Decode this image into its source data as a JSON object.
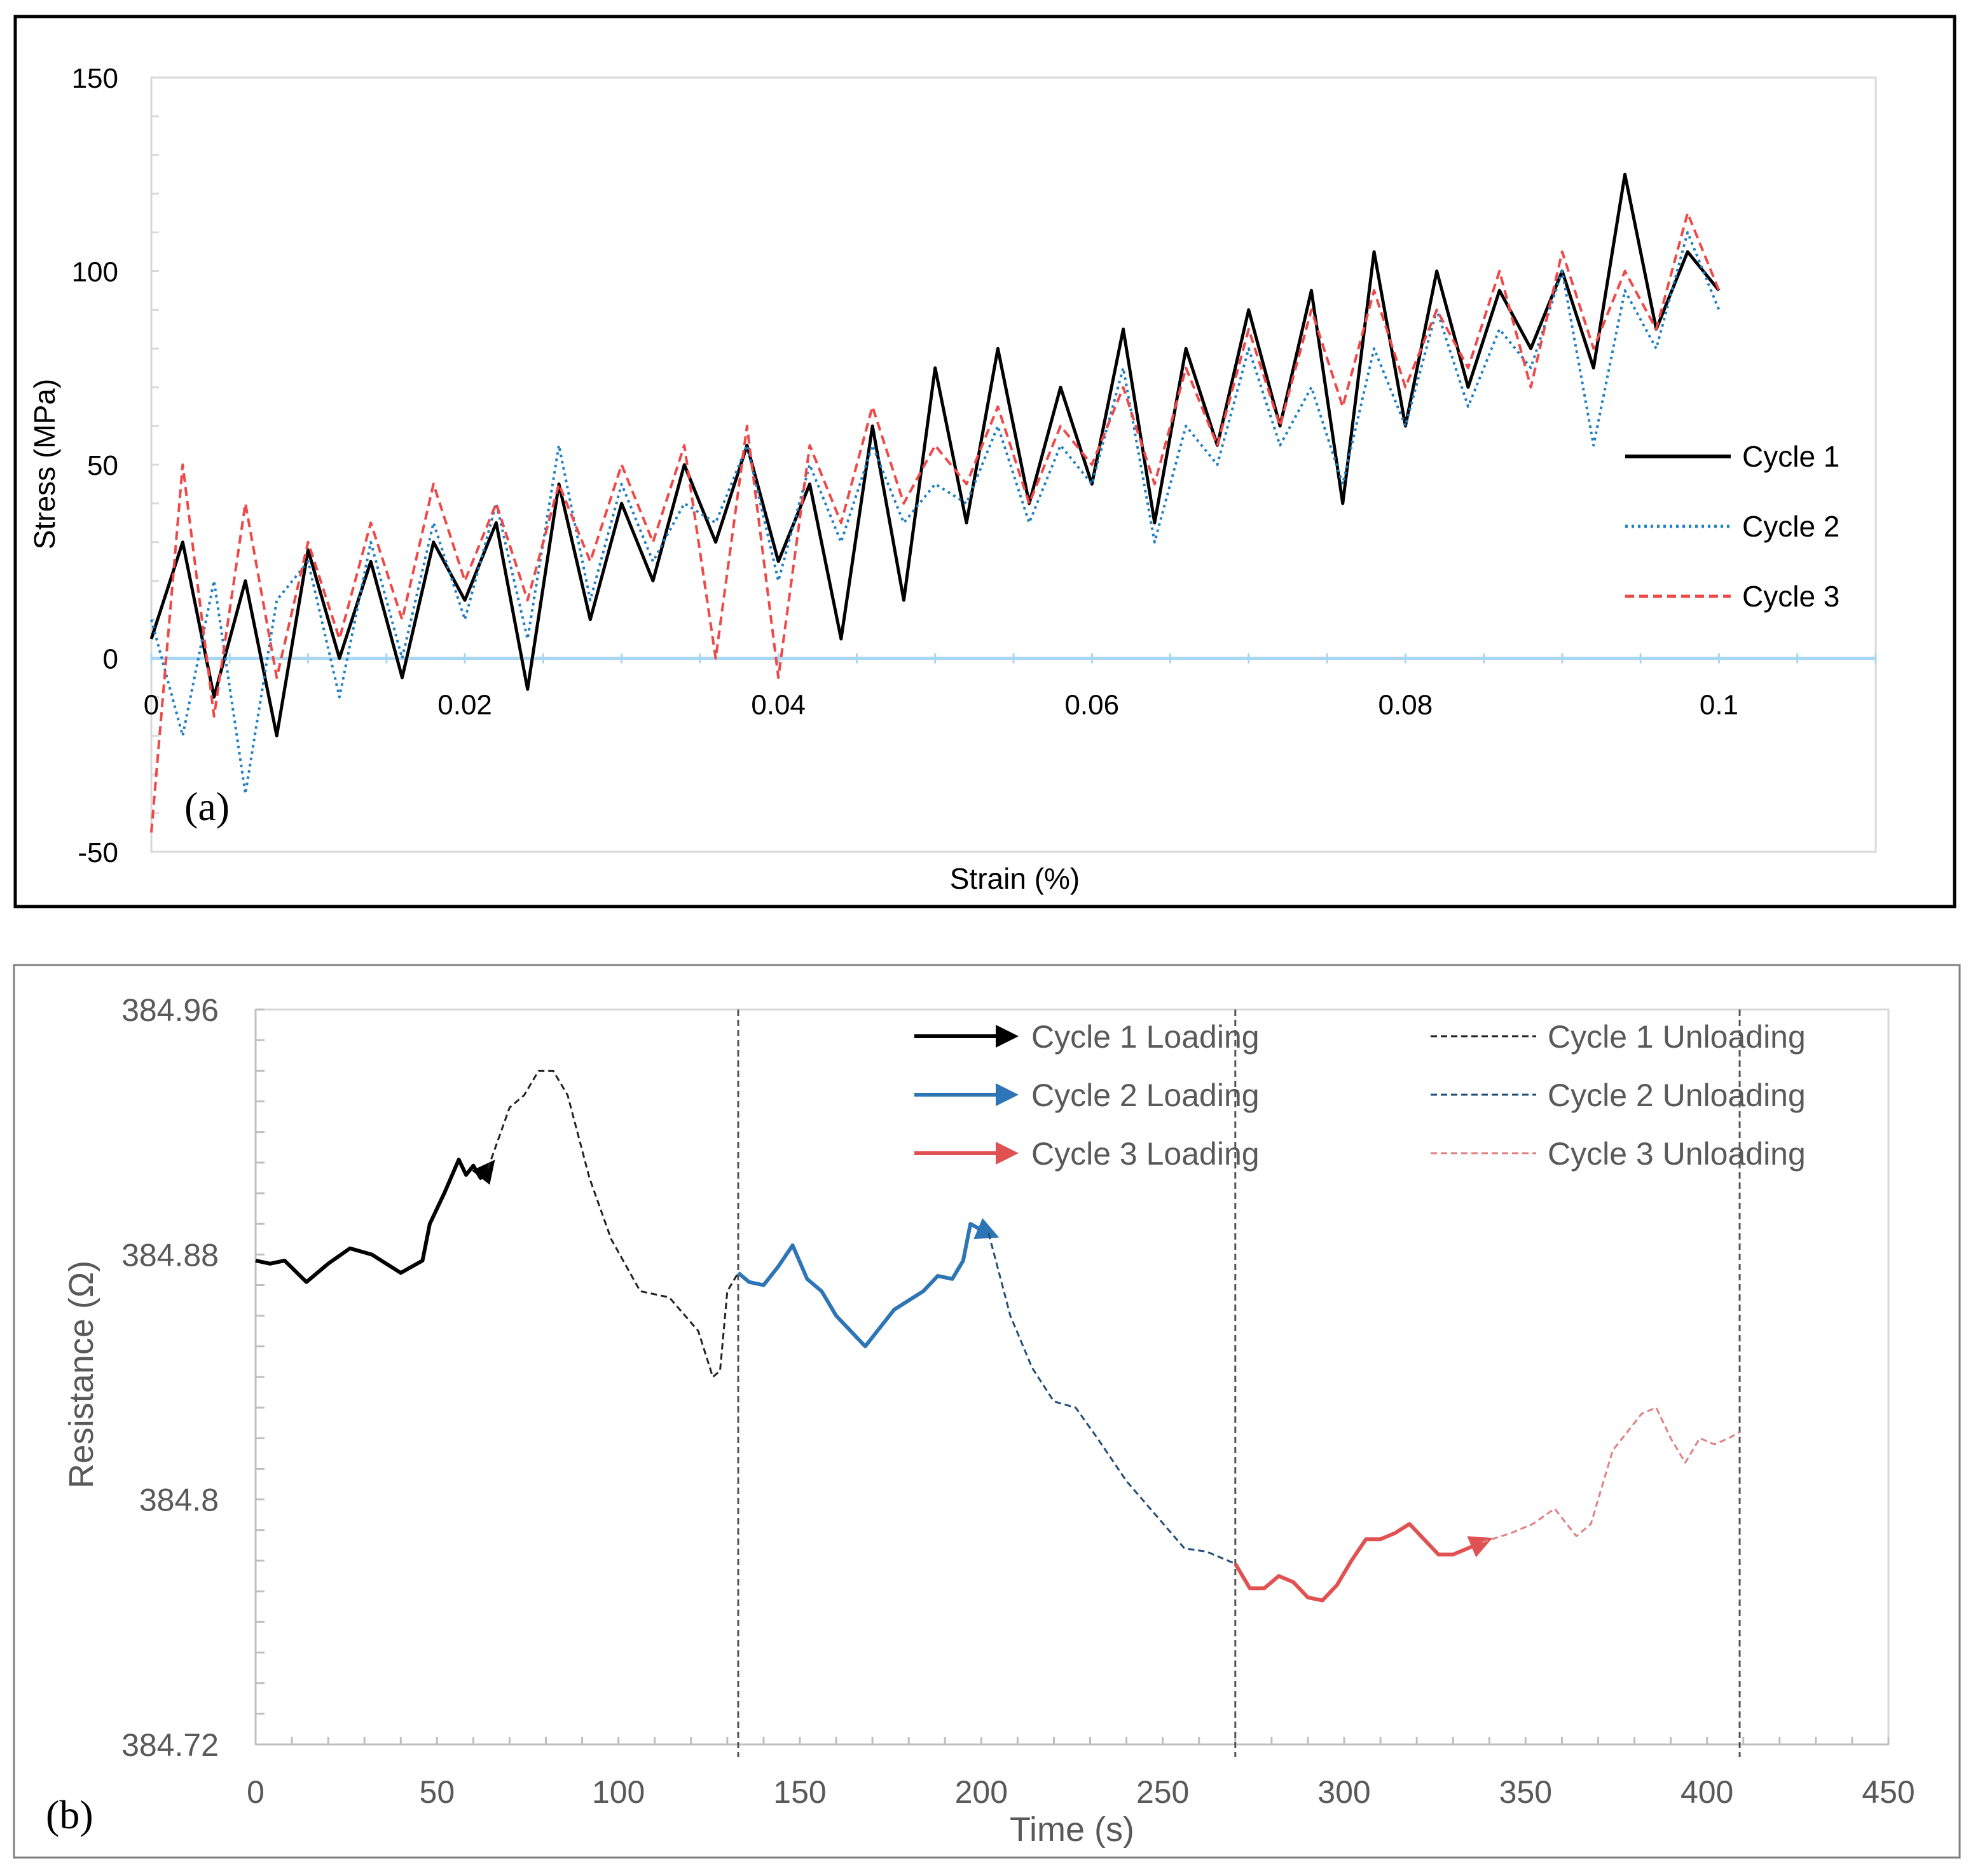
{
  "chart_data": [
    {
      "type": "line",
      "panel_label": "(a)",
      "xlabel": "Strain (%)",
      "ylabel": "Stress (MPa)",
      "xlim": [
        0,
        0.11
      ],
      "ylim": [
        -50,
        150
      ],
      "x_ticks": [
        {
          "value": 0,
          "label": "0"
        },
        {
          "value": 0.02,
          "label": "0.02"
        },
        {
          "value": 0.04,
          "label": "0.04"
        },
        {
          "value": 0.06,
          "label": "0.06"
        },
        {
          "value": 0.08,
          "label": "0.08"
        },
        {
          "value": 0.1,
          "label": "0.1"
        }
      ],
      "y_ticks": [
        {
          "value": -50,
          "label": "-50"
        },
        {
          "value": 0,
          "label": "0"
        },
        {
          "value": 50,
          "label": "50"
        },
        {
          "value": 100,
          "label": "100"
        },
        {
          "value": 150,
          "label": "150"
        }
      ],
      "legend": "right",
      "series": [
        {
          "name": "Cycle 1",
          "color": "#000000",
          "style": "solid",
          "x": [
            0,
            0.002,
            0.004,
            0.006,
            0.008,
            0.01,
            0.012,
            0.014,
            0.016,
            0.018,
            0.02,
            0.022,
            0.024,
            0.026,
            0.028,
            0.03,
            0.032,
            0.034,
            0.036,
            0.038,
            0.04,
            0.042,
            0.044,
            0.046,
            0.048,
            0.05,
            0.052,
            0.054,
            0.056,
            0.058,
            0.06,
            0.062,
            0.064,
            0.066,
            0.068,
            0.07,
            0.072,
            0.074,
            0.076,
            0.078,
            0.08,
            0.082,
            0.084,
            0.086,
            0.088,
            0.09,
            0.092,
            0.094,
            0.096,
            0.098,
            0.1
          ],
          "y": [
            5,
            30,
            -10,
            20,
            -20,
            28,
            0,
            25,
            -5,
            30,
            15,
            35,
            -8,
            45,
            10,
            40,
            20,
            50,
            30,
            55,
            25,
            45,
            5,
            60,
            15,
            75,
            35,
            80,
            40,
            70,
            45,
            85,
            35,
            80,
            55,
            90,
            60,
            95,
            40,
            105,
            60,
            100,
            70,
            95,
            80,
            100,
            75,
            125,
            85,
            105,
            95
          ]
        },
        {
          "name": "Cycle 2",
          "color": "#1f7fc4",
          "style": "dotted",
          "x": [
            0,
            0.002,
            0.004,
            0.006,
            0.008,
            0.01,
            0.012,
            0.014,
            0.016,
            0.018,
            0.02,
            0.022,
            0.024,
            0.026,
            0.028,
            0.03,
            0.032,
            0.034,
            0.036,
            0.038,
            0.04,
            0.042,
            0.044,
            0.046,
            0.048,
            0.05,
            0.052,
            0.054,
            0.056,
            0.058,
            0.06,
            0.062,
            0.064,
            0.066,
            0.068,
            0.07,
            0.072,
            0.074,
            0.076,
            0.078,
            0.08,
            0.082,
            0.084,
            0.086,
            0.088,
            0.09,
            0.092,
            0.094,
            0.096,
            0.098,
            0.1
          ],
          "y": [
            10,
            -20,
            20,
            -35,
            15,
            25,
            -10,
            30,
            0,
            35,
            10,
            40,
            5,
            55,
            15,
            45,
            25,
            40,
            35,
            55,
            20,
            50,
            30,
            55,
            35,
            45,
            40,
            60,
            35,
            55,
            45,
            75,
            30,
            60,
            50,
            80,
            55,
            70,
            45,
            80,
            60,
            90,
            65,
            85,
            75,
            100,
            55,
            95,
            80,
            110,
            90
          ]
        },
        {
          "name": "Cycle 3",
          "color": "#f04848",
          "style": "dashed",
          "x": [
            0,
            0.002,
            0.004,
            0.006,
            0.008,
            0.01,
            0.012,
            0.014,
            0.016,
            0.018,
            0.02,
            0.022,
            0.024,
            0.026,
            0.028,
            0.03,
            0.032,
            0.034,
            0.036,
            0.038,
            0.04,
            0.042,
            0.044,
            0.046,
            0.048,
            0.05,
            0.052,
            0.054,
            0.056,
            0.058,
            0.06,
            0.062,
            0.064,
            0.066,
            0.068,
            0.07,
            0.072,
            0.074,
            0.076,
            0.078,
            0.08,
            0.082,
            0.084,
            0.086,
            0.088,
            0.09,
            0.092,
            0.094,
            0.096,
            0.098,
            0.1
          ],
          "y": [
            -45,
            50,
            -15,
            40,
            -5,
            30,
            5,
            35,
            10,
            45,
            20,
            40,
            15,
            45,
            25,
            50,
            30,
            55,
            0,
            60,
            -5,
            55,
            35,
            65,
            40,
            55,
            45,
            65,
            40,
            60,
            50,
            70,
            45,
            75,
            55,
            85,
            60,
            90,
            65,
            95,
            70,
            90,
            75,
            100,
            70,
            105,
            80,
            100,
            85,
            115,
            95
          ]
        }
      ]
    },
    {
      "type": "line",
      "panel_label": "(b)",
      "xlabel": "Time (s)",
      "ylabel": "Resistance (Ω)",
      "xlim": [
        0,
        450
      ],
      "ylim": [
        384.72,
        384.96
      ],
      "x_ticks": [
        {
          "value": 0,
          "label": "0"
        },
        {
          "value": 50,
          "label": "50"
        },
        {
          "value": 100,
          "label": "100"
        },
        {
          "value": 150,
          "label": "150"
        },
        {
          "value": 200,
          "label": "200"
        },
        {
          "value": 250,
          "label": "250"
        },
        {
          "value": 300,
          "label": "300"
        },
        {
          "value": 350,
          "label": "350"
        },
        {
          "value": 400,
          "label": "400"
        },
        {
          "value": 450,
          "label": "450"
        }
      ],
      "y_ticks": [
        {
          "value": 384.72,
          "label": "384.72"
        },
        {
          "value": 384.8,
          "label": "384.8"
        },
        {
          "value": 384.88,
          "label": "384.88"
        },
        {
          "value": 384.96,
          "label": "384.96"
        }
      ],
      "vlines": [
        133,
        270,
        409
      ],
      "legend": "top-right",
      "series": [
        {
          "name": "Cycle 1 Loading",
          "color": "#000000",
          "style": "solid",
          "arrow": true,
          "x": [
            0,
            4,
            8,
            14,
            20,
            26,
            32,
            40,
            46,
            48,
            52,
            56,
            58,
            60,
            62,
            64
          ],
          "y": [
            384.878,
            384.877,
            384.878,
            384.871,
            384.877,
            384.882,
            384.88,
            384.874,
            384.878,
            384.89,
            384.9,
            384.911,
            384.906,
            384.909,
            384.905,
            384.908
          ]
        },
        {
          "name": "Cycle 1 Unloading",
          "color": "#222222",
          "style": "dashed",
          "x": [
            64,
            70,
            74,
            78,
            82,
            86,
            92,
            98,
            106,
            114,
            122,
            126,
            128,
            130,
            133
          ],
          "y": [
            384.908,
            384.928,
            384.932,
            384.94,
            384.94,
            384.932,
            384.905,
            384.885,
            384.868,
            384.866,
            384.855,
            384.84,
            384.842,
            384.868,
            384.874
          ]
        },
        {
          "name": "Cycle 2 Loading",
          "color": "#2e75b6",
          "style": "solid",
          "arrow": true,
          "x": [
            133,
            136,
            140,
            144,
            148,
            152,
            156,
            160,
            164,
            168,
            172,
            176,
            180,
            184,
            188,
            192,
            195,
            197,
            200,
            202
          ],
          "y": [
            384.874,
            384.871,
            384.87,
            384.876,
            384.883,
            384.872,
            384.868,
            384.86,
            384.855,
            384.85,
            384.856,
            384.862,
            384.865,
            384.868,
            384.873,
            384.872,
            384.878,
            384.89,
            384.888,
            384.887
          ]
        },
        {
          "name": "Cycle 2 Unloading",
          "color": "#1f4e79",
          "style": "dashed",
          "x": [
            202,
            208,
            214,
            220,
            226,
            232,
            240,
            248,
            256,
            262,
            266,
            270
          ],
          "y": [
            384.887,
            384.86,
            384.843,
            384.832,
            384.83,
            384.82,
            384.806,
            384.795,
            384.784,
            384.783,
            384.781,
            384.779
          ]
        },
        {
          "name": "Cycle 3 Loading",
          "color": "#e05252",
          "style": "solid",
          "arrow": true,
          "x": [
            270,
            274,
            278,
            282,
            286,
            290,
            294,
            298,
            302,
            306,
            310,
            314,
            318,
            322,
            326,
            330,
            334,
            338
          ],
          "y": [
            384.779,
            384.771,
            384.771,
            384.775,
            384.773,
            384.768,
            384.767,
            384.772,
            384.78,
            384.787,
            384.787,
            384.789,
            384.792,
            384.787,
            384.782,
            384.782,
            384.784,
            384.786
          ]
        },
        {
          "name": "Cycle 3 Unloading",
          "color": "#e08080",
          "style": "dashed",
          "x": [
            338,
            346,
            352,
            358,
            364,
            368,
            374,
            378,
            382,
            386,
            390,
            394,
            398,
            402,
            406,
            409
          ],
          "y": [
            384.786,
            384.789,
            384.792,
            384.797,
            384.788,
            384.792,
            384.816,
            384.822,
            384.828,
            384.83,
            384.82,
            384.812,
            384.82,
            384.818,
            384.82,
            384.822
          ]
        }
      ]
    }
  ]
}
